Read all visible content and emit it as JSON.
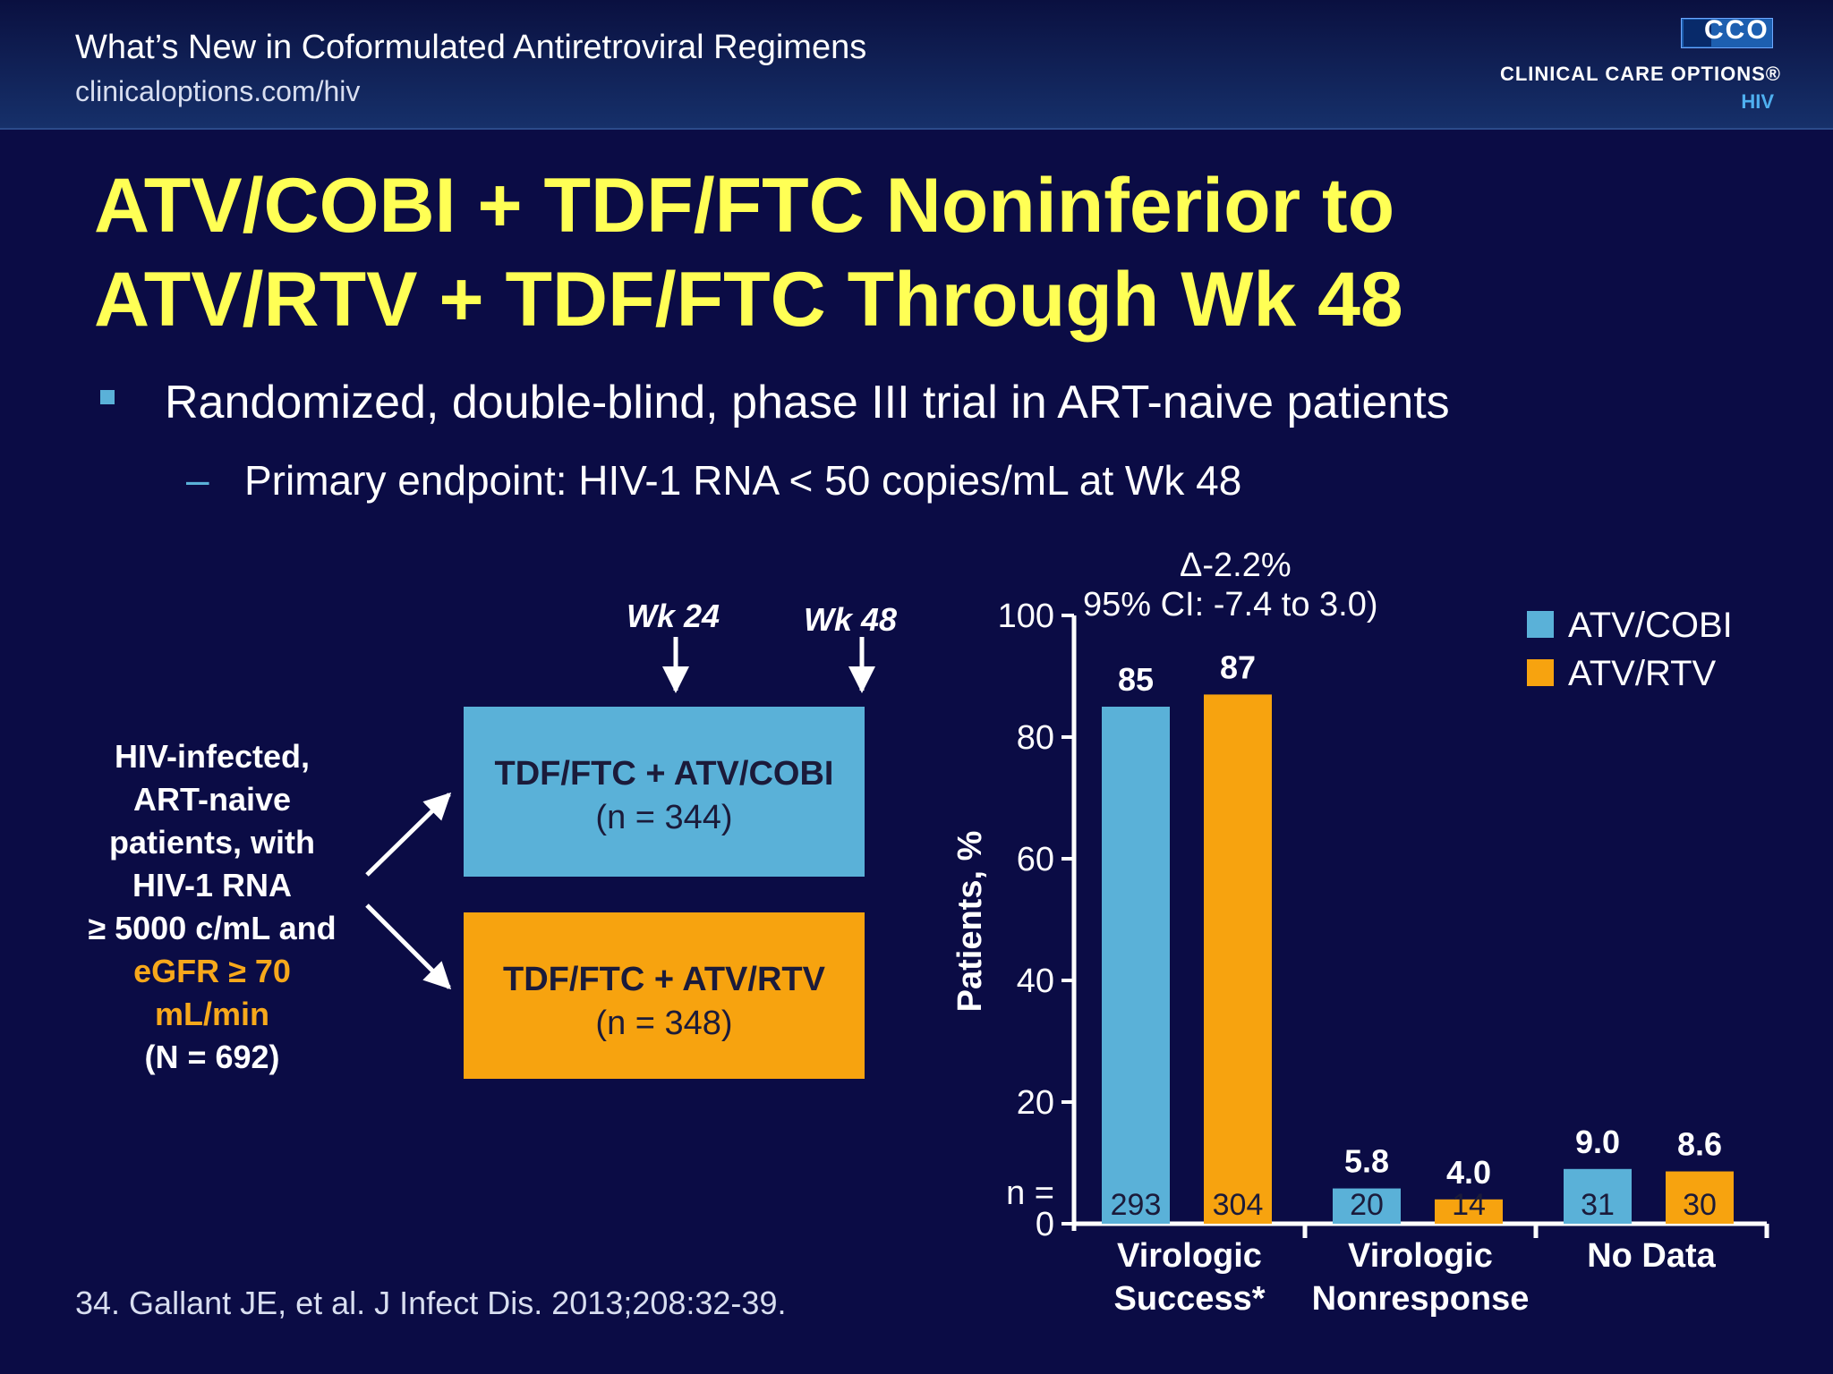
{
  "header": {
    "title": "What’s New in Coformulated Antiretroviral Regimens",
    "url": "clinicaloptions.com/hiv",
    "logo_mark": "CCO",
    "logo_name": "CLINICAL CARE OPTIONS®",
    "logo_sub": "HIV"
  },
  "slide": {
    "title_line1": "ATV/COBI + TDF/FTC Noninferior to",
    "title_line2": "ATV/RTV + TDF/FTC Through Wk 48",
    "bullet": "Randomized, double-blind, phase III trial in ART-naive patients",
    "dash": "–",
    "sub_bullet": "Primary endpoint: HIV-1 RNA < 50 copies/mL at Wk 48",
    "citation": "34. Gallant JE, et al. J Infect Dis. 2013;208:32-39."
  },
  "design": {
    "patients": {
      "l1": "HIV-infected,",
      "l2": "ART-naive",
      "l3": "patients, with",
      "l4": "HIV-1 RNA",
      "l5": "≥ 5000 c/mL and",
      "l6": "eGFR ≥ 70",
      "l7": "mL/min",
      "l8": "(N = 692)"
    },
    "wk24": "Wk 24",
    "wk48": "Wk 48",
    "arm1": {
      "name": "TDF/FTC + ATV/COBI",
      "n": "(n = 344)",
      "color": "#5ab1d8"
    },
    "arm2": {
      "name": "TDF/FTC + ATV/RTV",
      "n": "(n = 348)",
      "color": "#f7a30f"
    }
  },
  "chart_data": {
    "type": "bar",
    "annotation_line1": "Δ-2.2%",
    "annotation_line2": "95% CI: -7.4 to 3.0)",
    "ylabel": "Patients, %",
    "ylim": [
      0,
      100
    ],
    "yticks": [
      "0",
      "20",
      "40",
      "60",
      "80",
      "100"
    ],
    "n_label": "n =",
    "legend_position": "top-right",
    "categories": [
      {
        "line1": "Virologic",
        "line2": "Success*"
      },
      {
        "line1": "Virologic",
        "line2": "Nonresponse"
      },
      {
        "line1": "No Data",
        "line2": ""
      }
    ],
    "series": [
      {
        "name": "ATV/COBI",
        "color": "#5ab1d8",
        "values": [
          85,
          5.8,
          9.0
        ],
        "labels": [
          "85",
          "5.8",
          "9.0"
        ],
        "n": [
          "293",
          "20",
          "31"
        ]
      },
      {
        "name": "ATV/RTV",
        "color": "#f7a30f",
        "values": [
          87,
          4.0,
          8.6
        ],
        "labels": [
          "87",
          "4.0",
          "8.6"
        ],
        "n": [
          "304",
          "14",
          "30"
        ]
      }
    ]
  }
}
